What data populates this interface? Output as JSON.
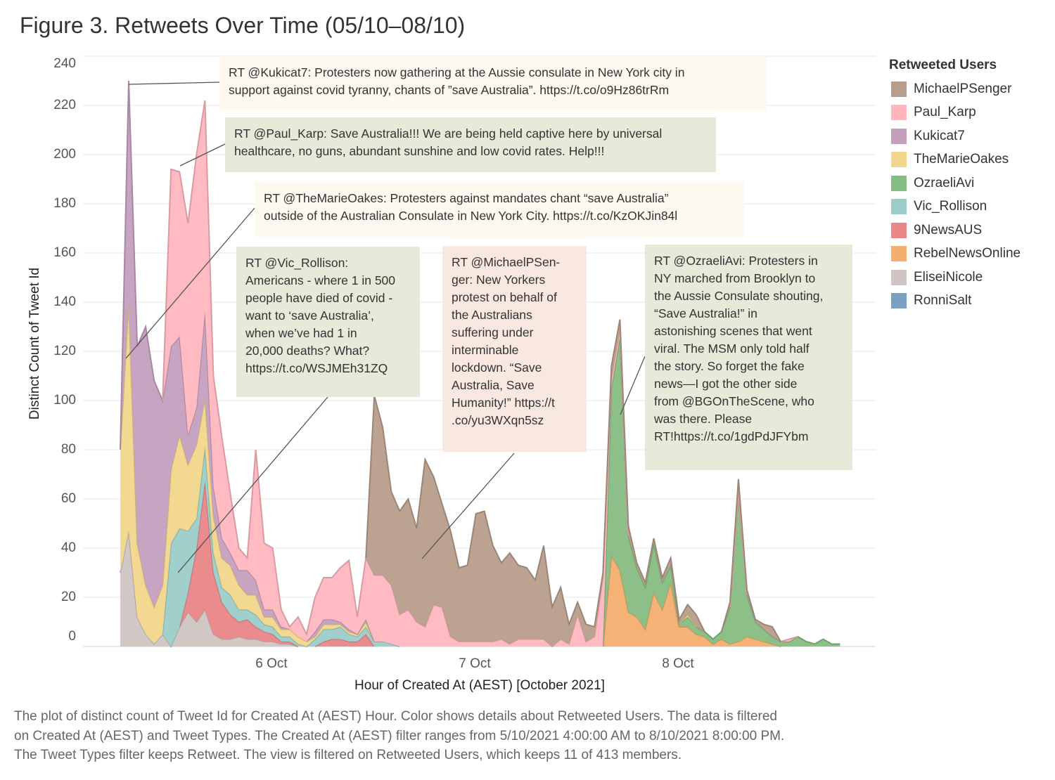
{
  "title": "Figure 3. Retweets Over Time (05/10–08/10)",
  "caption": "The plot of distinct count of Tweet Id for Created At (AEST) Hour.  Color shows details about Retweeted Users. The data is filtered\non Created At (AEST) and Tweet Types. The Created At (AEST) filter ranges from 5/10/2021 4:00:00 AM to 8/10/2021 8:00:00 PM.\nThe Tweet Types filter keeps Retweet. The view is filtered on Retweeted Users, which keeps 11 of 413 members.",
  "legend": {
    "title": "Retweeted Users",
    "items": [
      {
        "label": "MichaelPSenger",
        "color": "#b79d8b"
      },
      {
        "label": "Paul_Karp",
        "color": "#ffb6bf"
      },
      {
        "label": "Kukicat7",
        "color": "#c49fbe"
      },
      {
        "label": "TheMarieOakes",
        "color": "#f1d68b"
      },
      {
        "label": "OzraeliAvi",
        "color": "#86bd82"
      },
      {
        "label": "Vic_Rollison",
        "color": "#9ccdc9"
      },
      {
        "label": "9NewsAUS",
        "color": "#e98688"
      },
      {
        "label": "RebelNewsOnline",
        "color": "#f4ae6f"
      },
      {
        "label": "EliseiNicole",
        "color": "#cfc5c3"
      },
      {
        "label": "RonniSalt",
        "color": "#7a9fc2"
      }
    ]
  },
  "annotations": [
    {
      "user": "Kukicat7",
      "text": "RT @Kukicat7: Protesters now gathering at the Aussie consulate in New York city in\nsupport against covid tyranny, chants of ”save Australia”. https://t.co/o9Hz86trRm"
    },
    {
      "user": "Paul_Karp",
      "text": "RT @Paul_Karp: Save Australia!!! We are being held captive here by universal\nhealthcare, no guns, abundant sunshine and low covid rates. Help!!!"
    },
    {
      "user": "TheMarieOakes",
      "text": "RT @TheMarieOakes: Protesters against mandates chant “save Australia”\noutside of the Australian Consulate in New York City. https://t.co/KzOKJin84l"
    },
    {
      "user": "Vic_Rollison",
      "text": "RT @Vic_Rollison:\nAmericans - where 1 in 500\npeople have died of covid -\nwant to ‘save Australia’,\nwhen we’ve had 1 in\n20,000 deaths? What?\nhttps://t.co/WSJMEh31ZQ"
    },
    {
      "user": "MichaelPSenger",
      "text": "RT @MichaelPSen-\nger: New Yorkers\nprotest on behalf of\nthe Australians\nsuffering under\ninterminable\nlockdown.  “Save\nAustralia, Save\nHumanity!” https://t\n.co/yu3WXqn5sz"
    },
    {
      "user": "OzraeliAvi",
      "text": "RT @OzraeliAvi: Protesters in\nNY marched from Brooklyn to\nthe Aussie Consulate shouting,\n“Save Australia!” in\nastonishing scenes that went\nviral.  The MSM only told half\nthe story.  So forget the fake\nnews—I got the other side\nfrom @BGOnTheScene, who\nwas there.  Please\nRT!https://t.co/1gdPdJFYbm"
    }
  ],
  "chart_data": {
    "type": "area",
    "stacked": true,
    "title": "Figure 3. Retweets Over Time (05/10–08/10)",
    "xlabel": "Hour of Created At (AEST) [October 2021]",
    "ylabel": "Distinct Count of Tweet Id",
    "x_unit": "hours since 5 Oct 06:00",
    "x_range": [
      0,
      85
    ],
    "x_ticks": [
      {
        "label": "6 Oct",
        "hour": 18
      },
      {
        "label": "7 Oct",
        "hour": 42
      },
      {
        "label": "8 Oct",
        "hour": 66
      }
    ],
    "y_ticks": [
      "0",
      "20",
      "40",
      "60",
      "80",
      "100",
      "120",
      "140",
      "160",
      "180",
      "200",
      "220",
      "240"
    ],
    "ylim": [
      0,
      240
    ],
    "grid": true,
    "legend_position": "right",
    "stack_order_bottom_to_top": [
      "RonniSalt",
      "EliseiNicole",
      "RebelNewsOnline",
      "9NewsAUS",
      "Vic_Rollison",
      "OzraeliAvi",
      "TheMarieOakes",
      "Kukicat7",
      "Paul_Karp",
      "MichaelPSenger"
    ],
    "series": [
      {
        "name": "RonniSalt",
        "points": []
      },
      {
        "name": "EliseiNicole",
        "points": [
          [
            0,
            30
          ],
          [
            1,
            47
          ],
          [
            2,
            12
          ],
          [
            3,
            5
          ],
          [
            4,
            1
          ],
          [
            5,
            5
          ],
          [
            6,
            0
          ],
          [
            7,
            8
          ],
          [
            8,
            14
          ],
          [
            9,
            10
          ],
          [
            10,
            15
          ],
          [
            11,
            5
          ],
          [
            12,
            3
          ],
          [
            13,
            3
          ],
          [
            14,
            4
          ],
          [
            15,
            3
          ],
          [
            16,
            3
          ],
          [
            17,
            2
          ],
          [
            18,
            2
          ],
          [
            19,
            1
          ],
          [
            20,
            1
          ]
        ]
      },
      {
        "name": "RebelNewsOnline",
        "points": [
          [
            58,
            37
          ],
          [
            59,
            31
          ],
          [
            60,
            14
          ],
          [
            61,
            12
          ],
          [
            62,
            7
          ],
          [
            63,
            22
          ],
          [
            64,
            15
          ],
          [
            65,
            26
          ],
          [
            66,
            8
          ],
          [
            67,
            8
          ],
          [
            68,
            5
          ],
          [
            69,
            4
          ],
          [
            70,
            1
          ],
          [
            71,
            3
          ],
          [
            72,
            1
          ],
          [
            73,
            2
          ],
          [
            74,
            4
          ],
          [
            75,
            3
          ],
          [
            76,
            2
          ],
          [
            77,
            1
          ]
        ]
      },
      {
        "name": "9NewsAUS",
        "points": [
          [
            8,
            8
          ],
          [
            9,
            30
          ],
          [
            10,
            52
          ],
          [
            11,
            25
          ],
          [
            12,
            15
          ],
          [
            13,
            10
          ],
          [
            14,
            6
          ],
          [
            15,
            8
          ],
          [
            16,
            5
          ],
          [
            17,
            4
          ],
          [
            18,
            3
          ],
          [
            19,
            1
          ],
          [
            20,
            1
          ],
          [
            24,
            2
          ],
          [
            25,
            3
          ],
          [
            26,
            3
          ],
          [
            27,
            2
          ],
          [
            28,
            2
          ],
          [
            29,
            5
          ]
        ]
      },
      {
        "name": "Vic_Rollison",
        "points": [
          [
            6,
            42
          ],
          [
            7,
            40
          ],
          [
            8,
            25
          ],
          [
            9,
            12
          ],
          [
            10,
            14
          ],
          [
            11,
            8
          ],
          [
            12,
            6
          ],
          [
            13,
            8
          ],
          [
            14,
            5
          ],
          [
            15,
            4
          ],
          [
            16,
            5
          ],
          [
            17,
            3
          ],
          [
            18,
            3
          ],
          [
            19,
            2
          ],
          [
            20,
            2
          ],
          [
            21,
            1
          ],
          [
            23,
            3
          ],
          [
            24,
            5
          ],
          [
            25,
            4
          ],
          [
            26,
            5
          ],
          [
            27,
            3
          ],
          [
            28,
            2
          ],
          [
            29,
            3
          ],
          [
            30,
            2
          ],
          [
            31,
            2
          ],
          [
            32,
            1
          ]
        ]
      },
      {
        "name": "OzraeliAvi",
        "points": [
          [
            58,
            68
          ],
          [
            59,
            95
          ],
          [
            60,
            31
          ],
          [
            61,
            20
          ],
          [
            62,
            17
          ],
          [
            63,
            20
          ],
          [
            64,
            11
          ],
          [
            65,
            7
          ],
          [
            66,
            1
          ],
          [
            67,
            4
          ],
          [
            68,
            3
          ],
          [
            69,
            2
          ],
          [
            70,
            2
          ],
          [
            71,
            3
          ],
          [
            72,
            15
          ],
          [
            73,
            60
          ],
          [
            74,
            17
          ],
          [
            75,
            7
          ],
          [
            76,
            5
          ],
          [
            77,
            3
          ],
          [
            78,
            2
          ],
          [
            79,
            2
          ],
          [
            80,
            4
          ],
          [
            81,
            2
          ],
          [
            82,
            1
          ],
          [
            83,
            3
          ],
          [
            84,
            1
          ],
          [
            85,
            1
          ]
        ]
      },
      {
        "name": "TheMarieOakes",
        "points": [
          [
            0,
            50
          ],
          [
            1,
            93
          ],
          [
            2,
            30
          ],
          [
            3,
            20
          ],
          [
            4,
            15
          ],
          [
            5,
            20
          ],
          [
            6,
            30
          ],
          [
            7,
            38
          ],
          [
            8,
            27
          ],
          [
            9,
            30
          ],
          [
            10,
            20
          ],
          [
            11,
            15
          ],
          [
            12,
            12
          ],
          [
            13,
            12
          ],
          [
            14,
            10
          ],
          [
            15,
            6
          ],
          [
            16,
            8
          ],
          [
            17,
            3
          ],
          [
            18,
            4
          ],
          [
            19,
            3
          ],
          [
            20,
            3
          ],
          [
            21,
            3
          ],
          [
            22,
            2
          ],
          [
            23,
            1
          ],
          [
            24,
            2
          ],
          [
            25,
            2
          ],
          [
            26,
            1
          ],
          [
            27,
            1
          ],
          [
            28,
            1
          ],
          [
            29,
            2
          ],
          [
            67,
            1
          ]
        ]
      },
      {
        "name": "Kukicat7",
        "points": [
          [
            1,
            90
          ],
          [
            2,
            80
          ],
          [
            3,
            105
          ],
          [
            4,
            92
          ],
          [
            5,
            75
          ],
          [
            6,
            50
          ],
          [
            7,
            40
          ],
          [
            8,
            12
          ],
          [
            9,
            15
          ],
          [
            10,
            35
          ],
          [
            11,
            12
          ],
          [
            12,
            8
          ],
          [
            13,
            5
          ],
          [
            14,
            6
          ],
          [
            15,
            10
          ],
          [
            16,
            6
          ],
          [
            17,
            3
          ],
          [
            18,
            3
          ],
          [
            19,
            1
          ],
          [
            23,
            2
          ],
          [
            24,
            2
          ],
          [
            25,
            2
          ],
          [
            26,
            1
          ],
          [
            27,
            1
          ],
          [
            29,
            1
          ]
        ]
      },
      {
        "name": "Paul_Karp",
        "points": [
          [
            6,
            72
          ],
          [
            7,
            67
          ],
          [
            8,
            86
          ],
          [
            9,
            103
          ],
          [
            10,
            86
          ],
          [
            11,
            45
          ],
          [
            12,
            41
          ],
          [
            13,
            24
          ],
          [
            14,
            9
          ],
          [
            15,
            5
          ],
          [
            16,
            53
          ],
          [
            17,
            27
          ],
          [
            18,
            25
          ],
          [
            19,
            7
          ],
          [
            20,
            1
          ],
          [
            21,
            8
          ],
          [
            22,
            3
          ],
          [
            23,
            14
          ],
          [
            24,
            17
          ],
          [
            25,
            17
          ],
          [
            26,
            22
          ],
          [
            27,
            28
          ],
          [
            28,
            7
          ],
          [
            29,
            25
          ],
          [
            30,
            27
          ],
          [
            31,
            27
          ],
          [
            32,
            24
          ],
          [
            33,
            13
          ],
          [
            34,
            15
          ],
          [
            35,
            10
          ],
          [
            36,
            8
          ],
          [
            37,
            17
          ],
          [
            38,
            16
          ],
          [
            39,
            4
          ],
          [
            40,
            2
          ],
          [
            41,
            2
          ],
          [
            42,
            2
          ],
          [
            43,
            2
          ],
          [
            44,
            2
          ],
          [
            45,
            3
          ],
          [
            46,
            1
          ],
          [
            47,
            3
          ],
          [
            48,
            3
          ],
          [
            49,
            3
          ],
          [
            50,
            3
          ],
          [
            52,
            3
          ],
          [
            53,
            1
          ],
          [
            54,
            13
          ],
          [
            55,
            2
          ],
          [
            56,
            4
          ],
          [
            57,
            28
          ],
          [
            58,
            4
          ],
          [
            59,
            3
          ],
          [
            73,
            1
          ],
          [
            79,
            1
          ]
        ]
      },
      {
        "name": "MichaelPSenger",
        "points": [
          [
            30,
            73
          ],
          [
            31,
            60
          ],
          [
            32,
            38
          ],
          [
            33,
            42
          ],
          [
            34,
            45
          ],
          [
            35,
            38
          ],
          [
            36,
            68
          ],
          [
            37,
            52
          ],
          [
            38,
            42
          ],
          [
            39,
            43
          ],
          [
            40,
            30
          ],
          [
            41,
            31
          ],
          [
            42,
            52
          ],
          [
            43,
            53
          ],
          [
            44,
            39
          ],
          [
            45,
            31
          ],
          [
            46,
            37
          ],
          [
            47,
            30
          ],
          [
            48,
            29
          ],
          [
            49,
            24
          ],
          [
            50,
            38
          ],
          [
            51,
            16
          ],
          [
            52,
            21
          ],
          [
            53,
            8
          ],
          [
            54,
            5
          ],
          [
            55,
            7
          ],
          [
            56,
            4
          ],
          [
            57,
            2
          ],
          [
            58,
            5
          ],
          [
            59,
            4
          ],
          [
            60,
            4
          ],
          [
            61,
            2
          ],
          [
            62,
            2
          ],
          [
            63,
            2
          ],
          [
            64,
            2
          ],
          [
            65,
            3
          ],
          [
            66,
            2
          ],
          [
            67,
            4
          ],
          [
            68,
            5
          ],
          [
            72,
            2
          ],
          [
            73,
            5
          ],
          [
            74,
            2
          ],
          [
            75,
            1
          ],
          [
            76,
            2
          ],
          [
            77,
            4
          ]
        ]
      }
    ]
  }
}
